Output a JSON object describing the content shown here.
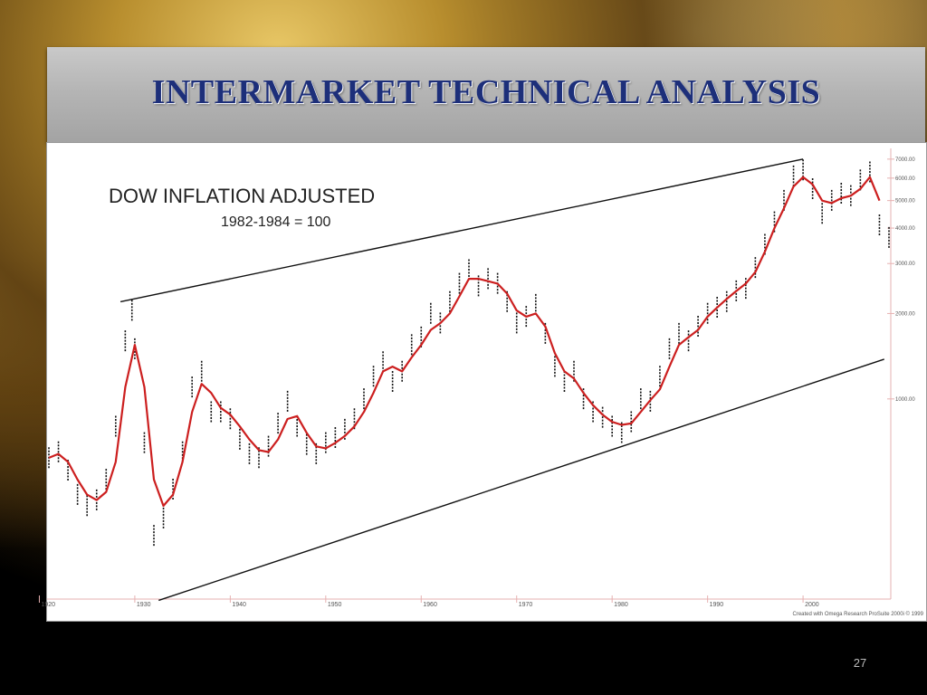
{
  "slide": {
    "title": "INTERMARKET TECHNICAL ANALYSIS",
    "page_number": "27"
  },
  "chart_data": {
    "type": "line",
    "title": "DOW INFLATION ADJUSTED",
    "subtitle": "1982-1984 = 100",
    "credit": "Created with Omega Research ProSuite 2000i © 1999",
    "xlabel": "",
    "ylabel": "",
    "x_axis": {
      "range": [
        1921,
        2009
      ],
      "ticks": [
        1920,
        1930,
        1940,
        1950,
        1960,
        1970,
        1980,
        1990,
        2000
      ]
    },
    "y_axis": {
      "scale": "log",
      "range": [
        200,
        7200
      ],
      "ticks": [
        1000,
        2000,
        3000,
        4000,
        5000,
        6000,
        7000
      ],
      "tick_labels": [
        "1000.00",
        "2000.00",
        "3000.00",
        "4000.00",
        "5000.00",
        "6000.00",
        "7000.00"
      ],
      "position": "right"
    },
    "grid": false,
    "series": [
      {
        "kind": "price-bars",
        "color": "#111111",
        "x": [
          1921,
          1922,
          1923,
          1924,
          1925,
          1926,
          1927,
          1928,
          1929,
          1929.7,
          1930,
          1931,
          1932,
          1933,
          1934,
          1935,
          1936,
          1937,
          1938,
          1939,
          1940,
          1941,
          1942,
          1943,
          1944,
          1945,
          1946,
          1947,
          1948,
          1949,
          1950,
          1951,
          1952,
          1953,
          1954,
          1955,
          1956,
          1957,
          1958,
          1959,
          1960,
          1961,
          1962,
          1963,
          1964,
          1965,
          1966,
          1967,
          1968,
          1969,
          1970,
          1971,
          1972,
          1973,
          1974,
          1975,
          1976,
          1977,
          1978,
          1979,
          1980,
          1981,
          1982,
          1983,
          1984,
          1985,
          1986,
          1987,
          1988,
          1989,
          1990,
          1991,
          1992,
          1993,
          1994,
          1995,
          1996,
          1997,
          1998,
          1999,
          2000,
          2001,
          2002,
          2003,
          2004,
          2005,
          2006,
          2007,
          2008,
          2009
        ],
        "values": [
          620,
          650,
          560,
          460,
          420,
          440,
          520,
          800,
          1600,
          2050,
          1500,
          700,
          330,
          380,
          480,
          650,
          1100,
          1250,
          900,
          900,
          850,
          720,
          640,
          620,
          680,
          820,
          980,
          800,
          690,
          640,
          700,
          730,
          780,
          850,
          1000,
          1200,
          1350,
          1150,
          1250,
          1550,
          1650,
          2000,
          1850,
          2200,
          2550,
          2850,
          2500,
          2650,
          2550,
          2200,
          1850,
          1950,
          2150,
          1700,
          1300,
          1150,
          1250,
          1000,
          900,
          860,
          800,
          760,
          830,
          1000,
          980,
          1200,
          1500,
          1700,
          1600,
          1800,
          2000,
          2100,
          2200,
          2400,
          2450,
          2900,
          3500,
          4200,
          5000,
          6100,
          6400,
          5500,
          4500,
          5000,
          5300,
          5200,
          5900,
          6300,
          4100,
          3700
        ]
      },
      {
        "kind": "moving-average",
        "color": "#cc1f1f",
        "x": [
          1921,
          1922,
          1923,
          1924,
          1925,
          1926,
          1927,
          1928,
          1929,
          1930,
          1931,
          1932,
          1933,
          1934,
          1935,
          1936,
          1937,
          1938,
          1939,
          1940,
          1941,
          1942,
          1943,
          1944,
          1945,
          1946,
          1947,
          1948,
          1949,
          1950,
          1951,
          1952,
          1953,
          1954,
          1955,
          1956,
          1957,
          1958,
          1959,
          1960,
          1961,
          1962,
          1963,
          1964,
          1965,
          1966,
          1967,
          1968,
          1969,
          1970,
          1971,
          1972,
          1973,
          1974,
          1975,
          1976,
          1977,
          1978,
          1979,
          1980,
          1981,
          1982,
          1983,
          1984,
          1985,
          1986,
          1987,
          1988,
          1989,
          1990,
          1991,
          1992,
          1993,
          1994,
          1995,
          1996,
          1997,
          1998,
          1999,
          2000,
          2001,
          2002,
          2003,
          2004,
          2005,
          2006,
          2007,
          2008
        ],
        "values": [
          620,
          640,
          600,
          520,
          460,
          440,
          470,
          600,
          1100,
          1550,
          1100,
          520,
          420,
          460,
          600,
          900,
          1130,
          1050,
          930,
          880,
          800,
          720,
          660,
          650,
          720,
          850,
          870,
          760,
          680,
          670,
          700,
          740,
          800,
          900,
          1050,
          1250,
          1300,
          1250,
          1400,
          1550,
          1750,
          1850,
          2000,
          2300,
          2650,
          2650,
          2600,
          2550,
          2350,
          2050,
          1950,
          2000,
          1800,
          1450,
          1250,
          1180,
          1050,
          950,
          880,
          830,
          810,
          820,
          900,
          990,
          1080,
          1300,
          1550,
          1650,
          1750,
          1950,
          2100,
          2250,
          2400,
          2550,
          2800,
          3300,
          4000,
          4700,
          5600,
          6050,
          5700,
          5000,
          4900,
          5100,
          5200,
          5500,
          6050,
          5000
        ]
      }
    ],
    "trendlines": [
      {
        "role": "upper-channel",
        "color": "#111111",
        "x": [
          1928.5,
          2000
        ],
        "values": [
          2200,
          7000
        ]
      },
      {
        "role": "lower-channel",
        "color": "#111111",
        "x": [
          1932.5,
          2008.5
        ],
        "values": [
          195,
          1380
        ]
      }
    ],
    "colors": {
      "price": "#111111",
      "average": "#cc1f1f",
      "axis": "#e0a0a0",
      "tick_text": "#555555"
    }
  }
}
